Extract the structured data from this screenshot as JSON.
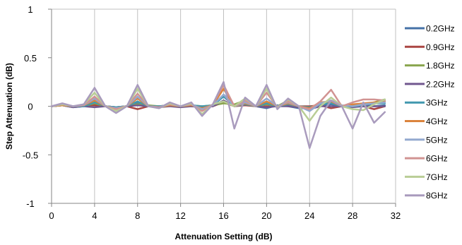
{
  "chart_data": {
    "type": "line",
    "title": "",
    "xlabel": "Attenuation Setting (dB)",
    "ylabel": "Step Attenuation (dB)",
    "xlim": [
      0,
      32
    ],
    "ylim": [
      -1,
      1
    ],
    "x_ticks": [
      0,
      4,
      8,
      12,
      16,
      20,
      24,
      28,
      32
    ],
    "y_ticks": [
      -1,
      -0.5,
      0,
      0.5,
      1
    ],
    "y_tick_labels": [
      "-1",
      "-0.5",
      "0",
      "0.5",
      "1"
    ],
    "grid": "vertical",
    "legend_position": "right",
    "x": [
      0,
      1,
      2,
      3,
      4,
      5,
      6,
      7,
      8,
      9,
      10,
      11,
      12,
      13,
      14,
      15,
      16,
      17,
      18,
      19,
      20,
      21,
      22,
      23,
      24,
      25,
      26,
      27,
      28,
      29,
      30,
      31
    ],
    "series": [
      {
        "name": "0.2GHz",
        "color": "#4572A7",
        "values": [
          0.0,
          0.01,
          -0.01,
          0.0,
          0.02,
          0.0,
          -0.01,
          0.0,
          0.03,
          0.0,
          -0.01,
          0.01,
          0.0,
          0.01,
          -0.01,
          0.0,
          0.12,
          0.0,
          0.02,
          0.0,
          -0.02,
          0.01,
          0.0,
          -0.02,
          -0.02,
          0.0,
          0.02,
          0.0,
          0.01,
          0.02,
          0.0,
          0.01
        ]
      },
      {
        "name": "0.9GHz",
        "color": "#AA4643",
        "values": [
          0.0,
          0.01,
          0.0,
          0.01,
          0.01,
          0.0,
          -0.01,
          0.0,
          -0.03,
          0.0,
          0.0,
          0.01,
          0.0,
          0.0,
          -0.01,
          0.0,
          0.04,
          0.0,
          0.01,
          0.0,
          0.0,
          0.0,
          0.01,
          0.0,
          0.0,
          0.01,
          -0.02,
          0.0,
          0.0,
          0.0,
          -0.03,
          0.0
        ]
      },
      {
        "name": "1.8GHz",
        "color": "#89A54E",
        "values": [
          0.0,
          0.01,
          0.0,
          0.0,
          0.03,
          0.0,
          -0.01,
          0.0,
          0.02,
          0.01,
          0.0,
          0.01,
          0.0,
          0.01,
          0.0,
          0.01,
          0.03,
          0.02,
          0.06,
          0.0,
          0.02,
          0.0,
          0.06,
          0.0,
          -0.01,
          0.02,
          0.04,
          0.0,
          0.0,
          0.02,
          0.04,
          0.07
        ]
      },
      {
        "name": "2.2GHz",
        "color": "#71588F",
        "values": [
          0.0,
          0.01,
          -0.01,
          0.0,
          -0.01,
          0.0,
          -0.01,
          0.0,
          0.01,
          0.0,
          -0.01,
          0.0,
          -0.01,
          0.0,
          -0.01,
          0.0,
          0.06,
          0.0,
          0.02,
          0.0,
          -0.01,
          0.0,
          0.0,
          -0.01,
          -0.03,
          0.0,
          0.0,
          0.0,
          -0.01,
          0.0,
          0.0,
          0.0
        ]
      },
      {
        "name": "3GHz",
        "color": "#4198AF",
        "values": [
          0.0,
          0.01,
          0.0,
          0.0,
          0.04,
          0.0,
          -0.01,
          0.0,
          0.05,
          0.0,
          0.0,
          0.01,
          0.0,
          0.01,
          0.0,
          0.01,
          0.1,
          0.0,
          0.02,
          0.0,
          0.03,
          0.0,
          0.02,
          0.0,
          -0.01,
          0.02,
          0.03,
          0.0,
          0.0,
          0.01,
          0.03,
          0.03
        ]
      },
      {
        "name": "4GHz",
        "color": "#DB843D",
        "values": [
          0.0,
          0.01,
          0.0,
          0.01,
          0.06,
          0.0,
          -0.02,
          0.0,
          0.08,
          0.0,
          -0.01,
          0.01,
          0.0,
          0.01,
          -0.02,
          0.01,
          0.18,
          0.0,
          0.03,
          0.0,
          0.05,
          0.0,
          0.03,
          0.0,
          -0.02,
          0.04,
          0.05,
          0.0,
          0.02,
          0.03,
          0.04,
          0.05
        ]
      },
      {
        "name": "5GHz",
        "color": "#93A9CF",
        "values": [
          0.0,
          0.02,
          0.0,
          0.01,
          0.08,
          0.0,
          -0.02,
          0.0,
          0.1,
          0.0,
          -0.01,
          0.02,
          0.0,
          0.02,
          -0.03,
          0.01,
          0.12,
          0.0,
          0.04,
          0.0,
          0.08,
          0.0,
          0.04,
          0.0,
          -0.05,
          0.03,
          0.06,
          0.01,
          0.0,
          0.02,
          0.03,
          0.04
        ]
      },
      {
        "name": "6GHz",
        "color": "#D19392",
        "values": [
          0.0,
          0.02,
          0.0,
          0.01,
          0.1,
          0.0,
          -0.03,
          0.0,
          0.13,
          0.0,
          -0.01,
          0.02,
          0.0,
          0.02,
          -0.05,
          0.02,
          0.22,
          0.0,
          0.06,
          0.0,
          0.14,
          -0.01,
          0.05,
          0.0,
          -0.03,
          0.05,
          0.17,
          0.0,
          0.04,
          0.07,
          0.07,
          0.06
        ]
      },
      {
        "name": "7GHz",
        "color": "#B9CD96",
        "values": [
          0.0,
          0.02,
          0.0,
          0.02,
          0.14,
          0.0,
          -0.05,
          0.0,
          0.18,
          0.0,
          -0.02,
          0.03,
          0.0,
          0.03,
          -0.08,
          0.02,
          0.05,
          0.0,
          0.08,
          0.0,
          0.18,
          -0.02,
          0.07,
          0.0,
          -0.15,
          0.0,
          0.09,
          0.0,
          -0.03,
          -0.04,
          0.02,
          0.07
        ]
      },
      {
        "name": "8GHz",
        "color": "#A99BBD",
        "values": [
          0.0,
          0.03,
          0.0,
          0.02,
          0.19,
          0.0,
          -0.07,
          0.0,
          0.22,
          0.0,
          -0.02,
          0.04,
          0.0,
          0.04,
          -0.1,
          0.02,
          0.25,
          -0.23,
          0.09,
          0.0,
          0.22,
          -0.03,
          0.08,
          0.0,
          -0.43,
          -0.1,
          0.06,
          0.0,
          -0.23,
          0.04,
          -0.17,
          -0.06
        ]
      }
    ]
  }
}
